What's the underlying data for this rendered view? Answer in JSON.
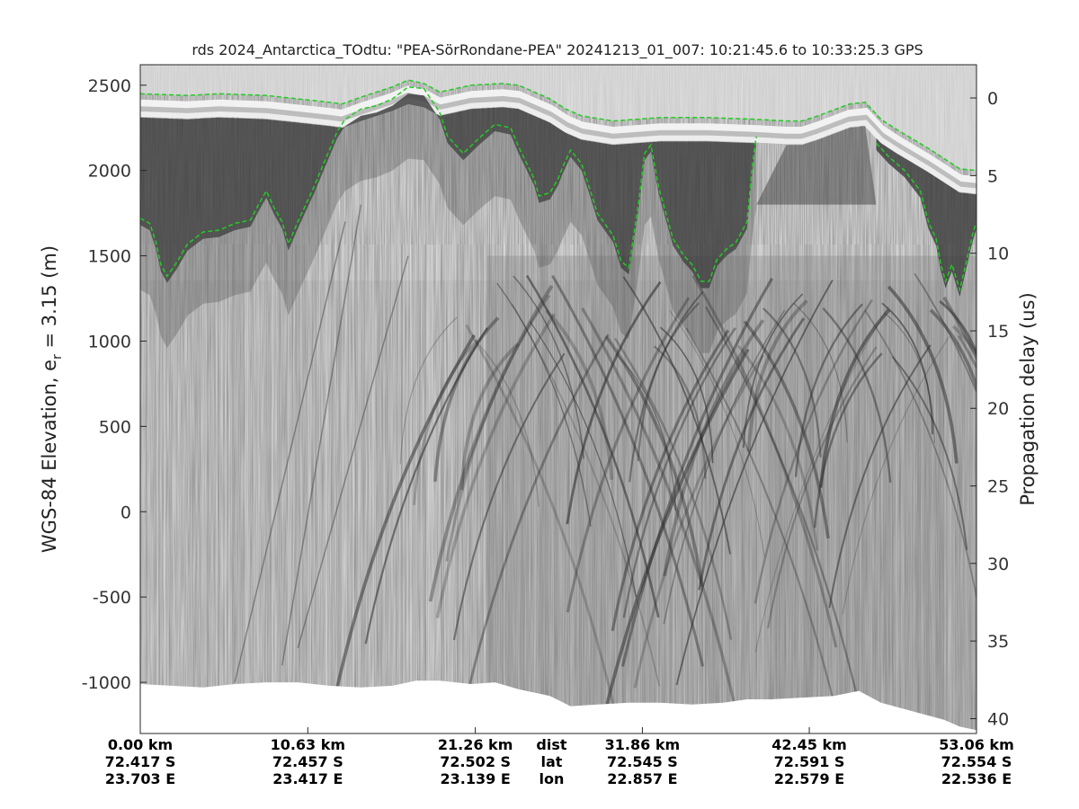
{
  "chart_data": {
    "type": "radargram",
    "title": "rds 2024_Antarctica_TOdtu: \"PEA-SörRondane-PEA\"  20241213_01_007: 10:21:45.6 to 10:33:25.3 GPS",
    "ylabel_left": "WGS-84 Elevation, e",
    "ylabel_left_sub": "r",
    "ylabel_left_suffix": " = 3.15 (m)",
    "ylabel_right": "Propagation delay (us)",
    "ylim": [
      -1300,
      2620
    ],
    "xlim": [
      0,
      53.06
    ],
    "grid": false,
    "colormap": "grayscale",
    "left_ticks": [
      2500,
      2000,
      1500,
      1000,
      500,
      0,
      -500,
      -1000
    ],
    "right_ticks": [
      0,
      5,
      10,
      15,
      20,
      25,
      30,
      35,
      40
    ],
    "right_tick_elevations": [
      2425,
      1970,
      1515,
      1060,
      606,
      151,
      -303,
      -758,
      -1213
    ],
    "bottom_row_labels": [
      "dist",
      "lat",
      "lon"
    ],
    "bottom_ticks": [
      {
        "x": 0.0,
        "dist": "0.00 km",
        "lat": "72.417 S",
        "lon": "23.703 E"
      },
      {
        "x": 10.63,
        "dist": "10.63 km",
        "lat": "72.457 S",
        "lon": "23.417 E"
      },
      {
        "x": 21.26,
        "dist": "21.26 km",
        "lat": "72.502 S",
        "lon": "23.139 E"
      },
      {
        "x": 31.86,
        "dist": "31.86 km",
        "lat": "72.545 S",
        "lon": "22.857 E"
      },
      {
        "x": 42.45,
        "dist": "42.45 km",
        "lat": "72.591 S",
        "lon": "22.579 E"
      },
      {
        "x": 53.06,
        "dist": "53.06 km",
        "lat": "72.554 S",
        "lon": "22.536 E"
      }
    ],
    "label_column_x": 26.1,
    "surface_elevation": [
      [
        0,
        2450
      ],
      [
        3,
        2440
      ],
      [
        5,
        2450
      ],
      [
        8,
        2440
      ],
      [
        10,
        2420
      ],
      [
        12,
        2400
      ],
      [
        12.8,
        2390
      ],
      [
        14,
        2430
      ],
      [
        16,
        2490
      ],
      [
        17,
        2530
      ],
      [
        18,
        2510
      ],
      [
        19,
        2460
      ],
      [
        21,
        2500
      ],
      [
        23,
        2510
      ],
      [
        24,
        2500
      ],
      [
        25,
        2460
      ],
      [
        26,
        2420
      ],
      [
        27,
        2360
      ],
      [
        28,
        2320
      ],
      [
        30,
        2290
      ],
      [
        33,
        2310
      ],
      [
        36,
        2310
      ],
      [
        39,
        2300
      ],
      [
        41,
        2290
      ],
      [
        42,
        2290
      ],
      [
        43,
        2320
      ],
      [
        45,
        2390
      ],
      [
        46,
        2400
      ],
      [
        47,
        2300
      ],
      [
        48,
        2240
      ],
      [
        50,
        2130
      ],
      [
        52,
        2010
      ],
      [
        53.06,
        2000
      ]
    ],
    "bed_elevation": [
      [
        0,
        1720
      ],
      [
        0.6,
        1690
      ],
      [
        1,
        1580
      ],
      [
        1.3,
        1450
      ],
      [
        1.7,
        1380
      ],
      [
        2.3,
        1460
      ],
      [
        3,
        1570
      ],
      [
        4,
        1640
      ],
      [
        5,
        1650
      ],
      [
        6,
        1690
      ],
      [
        7,
        1710
      ],
      [
        7.5,
        1800
      ],
      [
        8,
        1880
      ],
      [
        8.5,
        1780
      ],
      [
        9,
        1700
      ],
      [
        9.4,
        1570
      ],
      [
        10,
        1700
      ],
      [
        11,
        1900
      ],
      [
        12,
        2120
      ],
      [
        12.5,
        2230
      ],
      [
        13,
        2300
      ],
      [
        14,
        2360
      ],
      [
        15,
        2380
      ],
      [
        16,
        2420
      ],
      [
        17,
        2490
      ],
      [
        18,
        2480
      ],
      [
        19,
        2340
      ],
      [
        19.5,
        2200
      ],
      [
        20.5,
        2100
      ],
      [
        21.5,
        2190
      ],
      [
        22.5,
        2270
      ],
      [
        23.5,
        2250
      ],
      [
        24,
        2140
      ],
      [
        25,
        1950
      ],
      [
        25.3,
        1850
      ],
      [
        26,
        1870
      ],
      [
        26.5,
        1950
      ],
      [
        26.8,
        2020
      ],
      [
        27.3,
        2120
      ],
      [
        28,
        2040
      ],
      [
        28.5,
        1900
      ],
      [
        29,
        1750
      ],
      [
        30,
        1620
      ],
      [
        30.5,
        1470
      ],
      [
        31,
        1430
      ],
      [
        31.6,
        1800
      ],
      [
        32,
        2100
      ],
      [
        32.4,
        2150
      ],
      [
        32.9,
        1900
      ],
      [
        33.2,
        1800
      ],
      [
        33.8,
        1600
      ],
      [
        34.5,
        1500
      ],
      [
        35,
        1450
      ],
      [
        35.6,
        1350
      ],
      [
        36.1,
        1350
      ],
      [
        36.6,
        1480
      ],
      [
        37.2,
        1540
      ],
      [
        37.8,
        1580
      ],
      [
        38.5,
        1700
      ],
      [
        38.8,
        2000
      ],
      [
        39,
        2150
      ],
      [
        39.1,
        2200
      ]
    ],
    "bed_elevation_2": [
      [
        46.7,
        2160
      ],
      [
        47.5,
        2080
      ],
      [
        48.5,
        2000
      ],
      [
        49.5,
        1880
      ],
      [
        50,
        1700
      ],
      [
        50.5,
        1600
      ],
      [
        50.8,
        1450
      ],
      [
        51.1,
        1350
      ],
      [
        51.5,
        1450
      ],
      [
        52,
        1300
      ],
      [
        52.5,
        1500
      ],
      [
        52.8,
        1620
      ],
      [
        53.06,
        1700
      ]
    ],
    "data_bottom_elevation": [
      [
        0,
        -1010
      ],
      [
        2,
        -1020
      ],
      [
        4,
        -1030
      ],
      [
        6,
        -1010
      ],
      [
        8,
        -1000
      ],
      [
        10,
        -1000
      ],
      [
        12,
        -1020
      ],
      [
        14,
        -1030
      ],
      [
        16,
        -1020
      ],
      [
        17.5,
        -990
      ],
      [
        19,
        -990
      ],
      [
        21,
        -1010
      ],
      [
        22.5,
        -1000
      ],
      [
        24,
        -1040
      ],
      [
        26,
        -1080
      ],
      [
        27.3,
        -1140
      ],
      [
        29,
        -1130
      ],
      [
        31,
        -1120
      ],
      [
        33,
        -1120
      ],
      [
        35,
        -1130
      ],
      [
        37,
        -1120
      ],
      [
        38.5,
        -1100
      ],
      [
        40,
        -1100
      ],
      [
        42,
        -1090
      ],
      [
        44,
        -1080
      ],
      [
        45.6,
        -1050
      ],
      [
        47,
        -1120
      ],
      [
        49,
        -1170
      ],
      [
        51,
        -1220
      ],
      [
        52,
        -1260
      ],
      [
        53.06,
        -1280
      ]
    ],
    "pick_color": "#22cc22"
  }
}
